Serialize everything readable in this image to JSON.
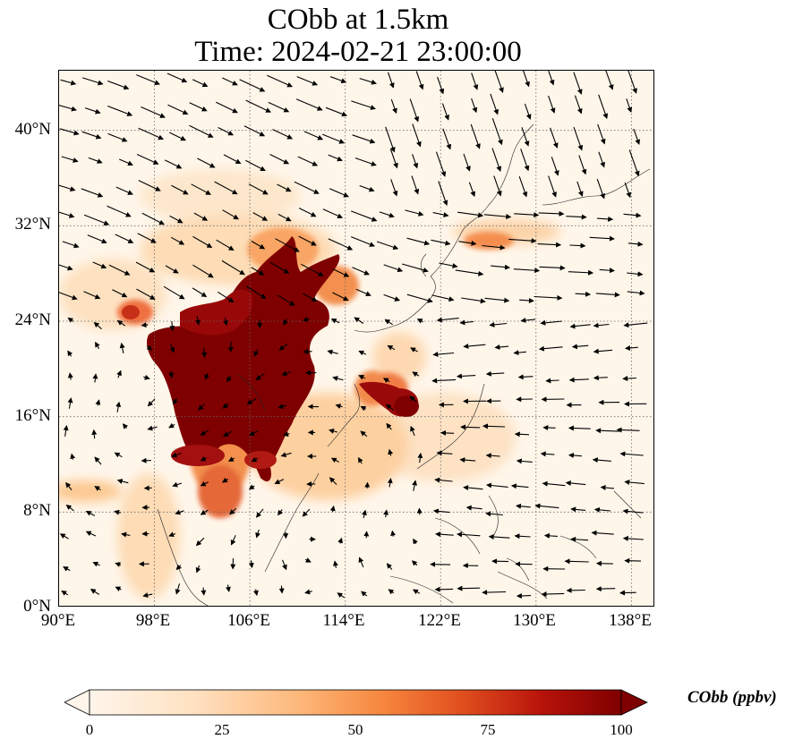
{
  "title_line1": "CObb at 1.5km",
  "title_line2": "Time: 2024-02-21 23:00:00",
  "map": {
    "lon_range": [
      90,
      140
    ],
    "lat_range": [
      0,
      45
    ],
    "lat_ticks": [
      "0°N",
      "8°N",
      "16°N",
      "24°N",
      "32°N",
      "40°N"
    ],
    "lon_ticks": [
      "90°E",
      "98°E",
      "106°E",
      "114°E",
      "122°E",
      "130°E",
      "138°E"
    ],
    "gridlines": true,
    "field_variable": "CObb",
    "overlay": "wind vectors",
    "colormap": [
      "#fff6ea",
      "#fdd6a8",
      "#fca65e",
      "#e8552a",
      "#c01a10",
      "#7f0000"
    ]
  },
  "colorbar": {
    "label": "CObb (ppbv)",
    "ticks": [
      "0",
      "25",
      "50",
      "75",
      "100"
    ],
    "range": [
      0,
      100
    ],
    "extend": "both"
  }
}
